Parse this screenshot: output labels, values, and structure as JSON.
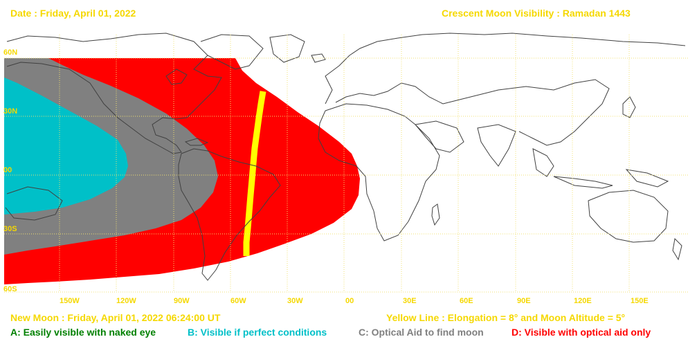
{
  "header": {
    "date": "Date : Friday, April 01, 2022",
    "title": "Crescent Moon Visibility : Ramadan  1443"
  },
  "map": {
    "latitude_labels": [
      "60N",
      "30N",
      "00",
      "30S",
      "60S"
    ],
    "longitude_labels": [
      "150W",
      "120W",
      "90W",
      "60W",
      "30W",
      "00",
      "30E",
      "60E",
      "90E",
      "120E",
      "150E"
    ]
  },
  "footer": {
    "new_moon": "New Moon : Friday, April 01, 2022  06:24:00  UT",
    "yellow_line": "Yellow Line : Elongation = 8° and Moon Altitude = 5°"
  },
  "legend": [
    {
      "label": "A: Easily visible with naked eye",
      "color": "#008000"
    },
    {
      "label": "B: Visible if perfect conditions",
      "color": "#00c0c8"
    },
    {
      "label": "C: Optical Aid to find moon",
      "color": "#808080"
    },
    {
      "label": "D: Visible with optical aid only",
      "color": "#ff0000"
    }
  ],
  "colors": {
    "zone_d": "#ff0000",
    "zone_c": "#808080",
    "zone_b": "#00c0c8",
    "yellow_line": "#ffff00",
    "grid": "#f0e070",
    "text": "#f5d800"
  }
}
